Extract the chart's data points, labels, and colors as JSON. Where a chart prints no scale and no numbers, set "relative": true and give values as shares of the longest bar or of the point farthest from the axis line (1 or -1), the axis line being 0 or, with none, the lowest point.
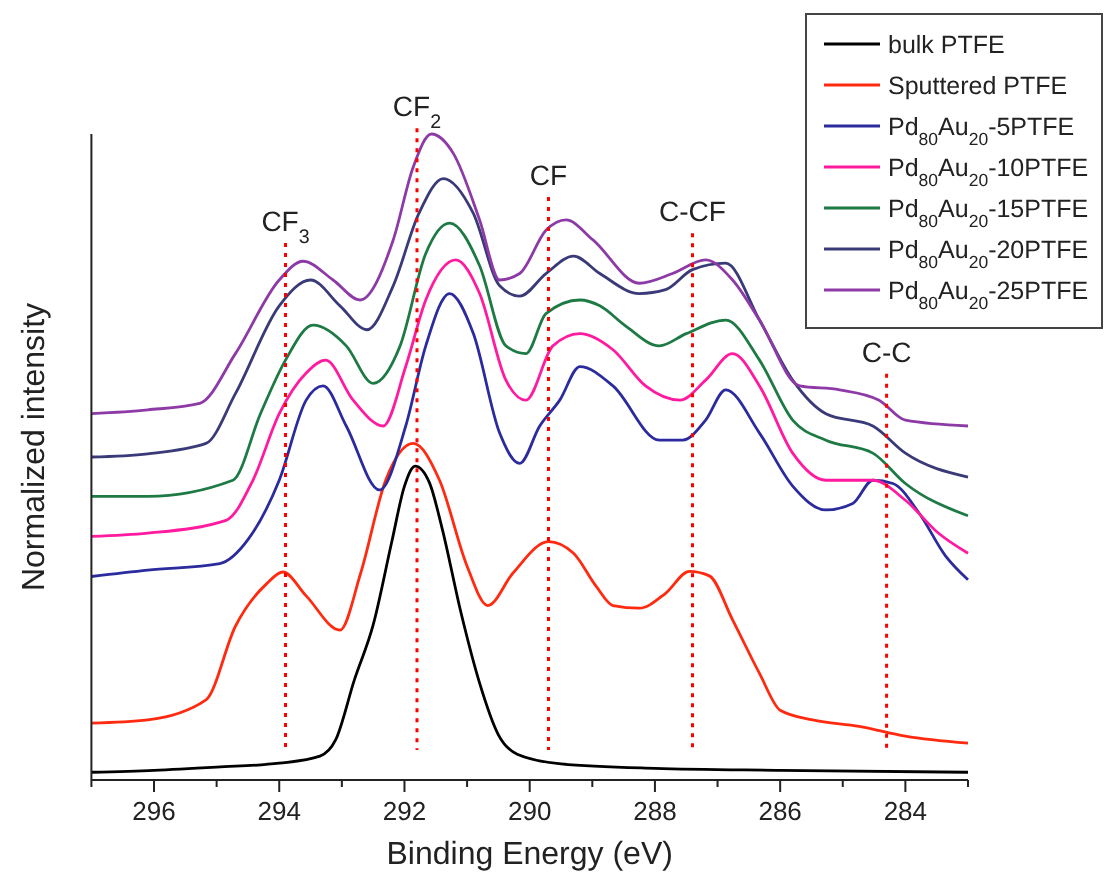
{
  "chart_data": {
    "type": "line",
    "relative": true,
    "xlabel": "Binding Energy (eV)",
    "ylabel": "Normalized intensity",
    "xlim": [
      297,
      283
    ],
    "xticks": [
      {
        "value": 297,
        "label": null
      },
      {
        "value": 296,
        "label": "296"
      },
      {
        "value": 295,
        "label": null
      },
      {
        "value": 294,
        "label": "294"
      },
      {
        "value": 293,
        "label": null
      },
      {
        "value": 292,
        "label": "292"
      },
      {
        "value": 291,
        "label": null
      },
      {
        "value": 290,
        "label": "290"
      },
      {
        "value": 289,
        "label": null
      },
      {
        "value": 288,
        "label": "288"
      },
      {
        "value": 287,
        "label": null
      },
      {
        "value": 286,
        "label": "286"
      },
      {
        "value": 285,
        "label": null
      },
      {
        "value": 284,
        "label": "284"
      },
      {
        "value": 283,
        "label": null
      }
    ],
    "tick_labels": "x",
    "legend": "top right",
    "grid": false,
    "marker": "none",
    "line_style": "solid",
    "series": [
      {
        "name": "bulk PTFE",
        "color": "#000000",
        "x": [
          297,
          296,
          295,
          294,
          293.35,
          293.1,
          292.8,
          292.5,
          292.2,
          292.0,
          291.83,
          291.6,
          291.4,
          291.1,
          290.8,
          290.5,
          290.2,
          289.5,
          288,
          286,
          283
        ],
        "values": [
          0.012,
          0.015,
          0.02,
          0.026,
          0.037,
          0.062,
          0.155,
          0.24,
          0.37,
          0.455,
          0.486,
          0.46,
          0.39,
          0.26,
          0.15,
          0.07,
          0.04,
          0.025,
          0.018,
          0.015,
          0.012
        ]
      },
      {
        "name": "Sputtered PTFE",
        "color": "#ff2a10",
        "x": [
          297,
          296.1,
          295.17,
          294.7,
          294.2,
          293.94,
          293.57,
          293.03,
          292.7,
          292.3,
          291.86,
          291.44,
          291.0,
          290.67,
          290.27,
          289.7,
          289.3,
          288.94,
          288.67,
          288.25,
          287.83,
          287.45,
          287.13,
          286.76,
          286.33,
          286.0,
          285.48,
          284.74,
          284.0,
          283
        ],
        "values": [
          0.088,
          0.093,
          0.124,
          0.238,
          0.304,
          0.322,
          0.285,
          0.232,
          0.32,
          0.464,
          0.521,
          0.464,
          0.331,
          0.27,
          0.32,
          0.369,
          0.351,
          0.3,
          0.27,
          0.266,
          0.289,
          0.323,
          0.316,
          0.248,
          0.165,
          0.108,
          0.093,
          0.083,
          0.068,
          0.057
        ]
      },
      {
        "name": "Pd$_{80}$Au$_{20}$-5PTFE",
        "color": "#2b2b9e",
        "x": [
          297,
          296.1,
          294.95,
          294.5,
          294.0,
          293.57,
          293.3,
          292.93,
          292.4,
          291.98,
          291.66,
          291.28,
          290.9,
          290.48,
          290.16,
          289.84,
          289.52,
          289.2,
          288.67,
          287.93,
          287.56,
          287.19,
          286.87,
          286.33,
          285.8,
          285.27,
          284.84,
          284.52,
          284.2,
          283.78,
          283.36,
          283
        ],
        "values": [
          0.315,
          0.325,
          0.335,
          0.372,
          0.464,
          0.588,
          0.61,
          0.548,
          0.449,
          0.548,
          0.672,
          0.753,
          0.691,
          0.537,
          0.49,
          0.548,
          0.588,
          0.64,
          0.61,
          0.526,
          0.526,
          0.557,
          0.604,
          0.537,
          0.455,
          0.418,
          0.428,
          0.464,
          0.459,
          0.413,
          0.347,
          0.31
        ]
      },
      {
        "name": "Pd$_{80}$Au$_{20}$-10PTFE",
        "color": "#ff1aa0",
        "x": [
          297,
          296.1,
          294.85,
          294.42,
          294.0,
          293.57,
          293.26,
          292.82,
          292.34,
          291.98,
          291.66,
          291.18,
          290.8,
          290.38,
          290.06,
          289.63,
          289.2,
          288.67,
          288.15,
          287.6,
          287.19,
          286.76,
          286.33,
          285.8,
          285.27,
          284.52,
          284.0,
          283.47,
          283
        ],
        "values": [
          0.377,
          0.382,
          0.402,
          0.464,
          0.567,
          0.63,
          0.65,
          0.588,
          0.548,
          0.64,
          0.743,
          0.805,
          0.753,
          0.619,
          0.588,
          0.672,
          0.691,
          0.666,
          0.61,
          0.588,
          0.619,
          0.66,
          0.61,
          0.506,
          0.464,
          0.464,
          0.433,
          0.382,
          0.351
        ]
      },
      {
        "name": "Pd$_{80}$Au$_{20}$-15PTFE",
        "color": "#1e7a45",
        "x": [
          297,
          296.1,
          294.74,
          294.3,
          293.9,
          293.46,
          292.93,
          292.5,
          292.07,
          291.66,
          291.28,
          290.8,
          290.38,
          290.06,
          289.74,
          289.2,
          288.88,
          288.47,
          287.93,
          287.5,
          286.87,
          286.33,
          285.8,
          285.27,
          284.52,
          284.0,
          283
        ],
        "values": [
          0.439,
          0.439,
          0.464,
          0.567,
          0.65,
          0.704,
          0.672,
          0.614,
          0.672,
          0.815,
          0.862,
          0.796,
          0.672,
          0.66,
          0.722,
          0.743,
          0.734,
          0.703,
          0.672,
          0.691,
          0.712,
          0.65,
          0.557,
          0.526,
          0.506,
          0.459,
          0.409
        ]
      },
      {
        "name": "Pd$_{80}$Au$_{20}$-20PTFE",
        "color": "#3a3a78",
        "x": [
          297,
          296.1,
          295.17,
          294.7,
          294.0,
          293.5,
          293.03,
          292.6,
          292.18,
          291.77,
          291.38,
          290.9,
          290.48,
          290.16,
          289.74,
          289.3,
          288.88,
          288.25,
          287.83,
          287.4,
          286.87,
          286.33,
          285.8,
          285.27,
          284.52,
          284.0,
          283
        ],
        "values": [
          0.5,
          0.505,
          0.521,
          0.598,
          0.734,
          0.774,
          0.734,
          0.697,
          0.765,
          0.877,
          0.931,
          0.877,
          0.765,
          0.749,
          0.784,
          0.811,
          0.784,
          0.753,
          0.759,
          0.79,
          0.8,
          0.712,
          0.619,
          0.567,
          0.548,
          0.506,
          0.469
        ]
      },
      {
        "name": "Pd$_{80}$Au$_{20}$-25PTFE",
        "color": "#8e3aa6",
        "x": [
          297,
          296.1,
          295.27,
          294.7,
          294.0,
          293.62,
          293.14,
          292.71,
          292.18,
          291.86,
          291.57,
          291.22,
          290.8,
          290.48,
          290.16,
          289.74,
          289.42,
          288.99,
          288.25,
          287.72,
          287.19,
          286.76,
          286.33,
          285.69,
          285.05,
          284.42,
          284.0,
          283
        ],
        "values": [
          0.567,
          0.573,
          0.583,
          0.66,
          0.774,
          0.803,
          0.774,
          0.743,
          0.836,
          0.949,
          1.0,
          0.97,
          0.867,
          0.774,
          0.784,
          0.851,
          0.867,
          0.836,
          0.769,
          0.784,
          0.805,
          0.774,
          0.712,
          0.61,
          0.604,
          0.588,
          0.557,
          0.548
        ]
      }
    ],
    "ref_lines": [
      {
        "axis": "x",
        "value": 293.9,
        "label": "CF$_{3}$",
        "color": "#ff0000",
        "line_style": "dotted"
      },
      {
        "axis": "x",
        "value": 291.8,
        "label": "CF$_{2}$",
        "color": "#ff0000",
        "line_style": "dotted"
      },
      {
        "axis": "x",
        "value": 289.7,
        "label": "CF",
        "color": "#ff0000",
        "line_style": "dotted"
      },
      {
        "axis": "x",
        "value": 287.4,
        "label": "C-CF",
        "color": "#ff0000",
        "line_style": "dotted"
      },
      {
        "axis": "x",
        "value": 284.3,
        "label": "C-C",
        "color": "#ff0000",
        "line_style": "dotted"
      }
    ]
  }
}
